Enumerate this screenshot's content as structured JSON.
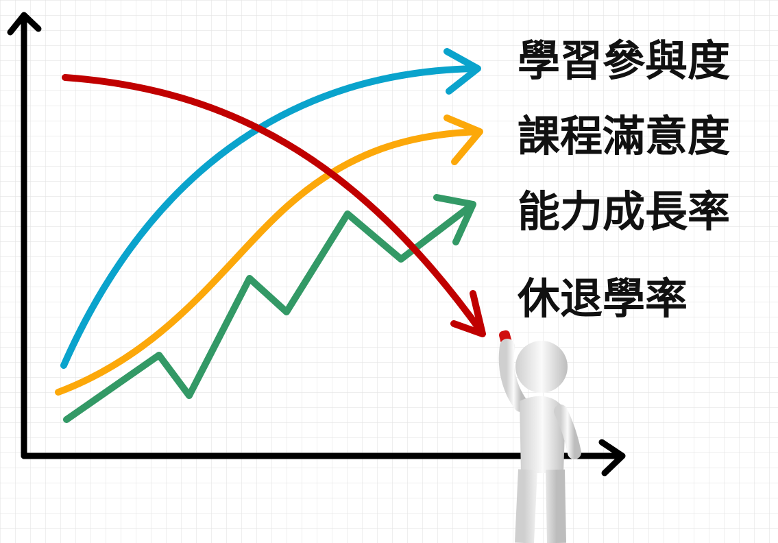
{
  "labels": [
    "學習參與度",
    "課程滿意度",
    "能力成長率",
    "休退學率"
  ]
}
